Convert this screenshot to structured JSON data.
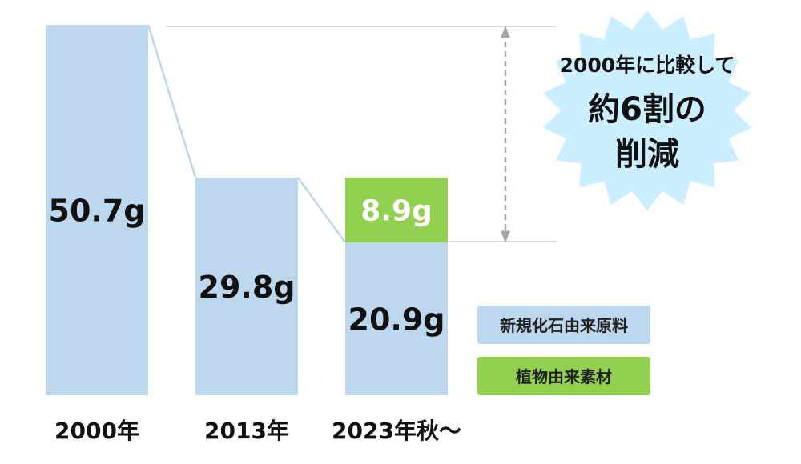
{
  "chart_data": {
    "type": "bar",
    "stacked": true,
    "unit": "g",
    "categories": [
      "2000年",
      "2013年",
      "2023年秋～"
    ],
    "series": [
      {
        "name": "新規化石由来原料",
        "color": "#bdd7ee",
        "values": [
          50.7,
          29.8,
          20.9
        ],
        "labels": [
          "50.7g",
          "29.8g",
          "20.9g"
        ]
      },
      {
        "name": "植物由来素材",
        "color": "#92d050",
        "values": [
          0,
          0,
          8.9
        ],
        "labels": [
          "",
          "",
          "8.9g"
        ]
      }
    ],
    "legend_position": "bottom-right",
    "grid": false,
    "connector_color": "#bdd7ee",
    "reference_line_color": "#bfbfbf",
    "arrow_color": "#a6a6a6"
  },
  "callout": {
    "line1": "2000年に比較して",
    "line2": "約6割の",
    "line3": "削減",
    "color": "#ccefff"
  }
}
